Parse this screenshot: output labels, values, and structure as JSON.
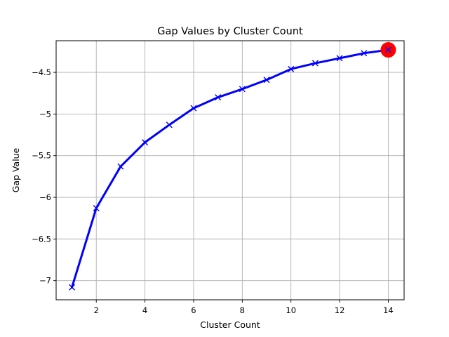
{
  "chart_data": {
    "type": "line",
    "title": "Gap Values by Cluster Count",
    "xlabel": "Cluster Count",
    "ylabel": "Gap Value",
    "xlim": [
      0.35,
      14.65
    ],
    "ylim": [
      -7.23,
      -4.12
    ],
    "xticks": [
      2,
      4,
      6,
      8,
      10,
      12,
      14
    ],
    "yticks": [
      -7.0,
      -6.5,
      -6.0,
      -5.5,
      -5.0,
      -4.5
    ],
    "grid": true,
    "series": [
      {
        "color": "#0000ff",
        "marker": "x",
        "x": [
          1,
          2,
          3,
          4,
          5,
          6,
          7,
          8,
          9,
          10,
          11,
          12,
          13,
          14
        ],
        "y": [
          -7.08,
          -6.13,
          -5.63,
          -5.34,
          -5.13,
          -4.93,
          -4.8,
          -4.7,
          -4.59,
          -4.46,
          -4.39,
          -4.33,
          -4.27,
          -4.23
        ]
      }
    ],
    "highlight": {
      "x": 14,
      "y": -4.23,
      "color": "#ff0000"
    }
  }
}
